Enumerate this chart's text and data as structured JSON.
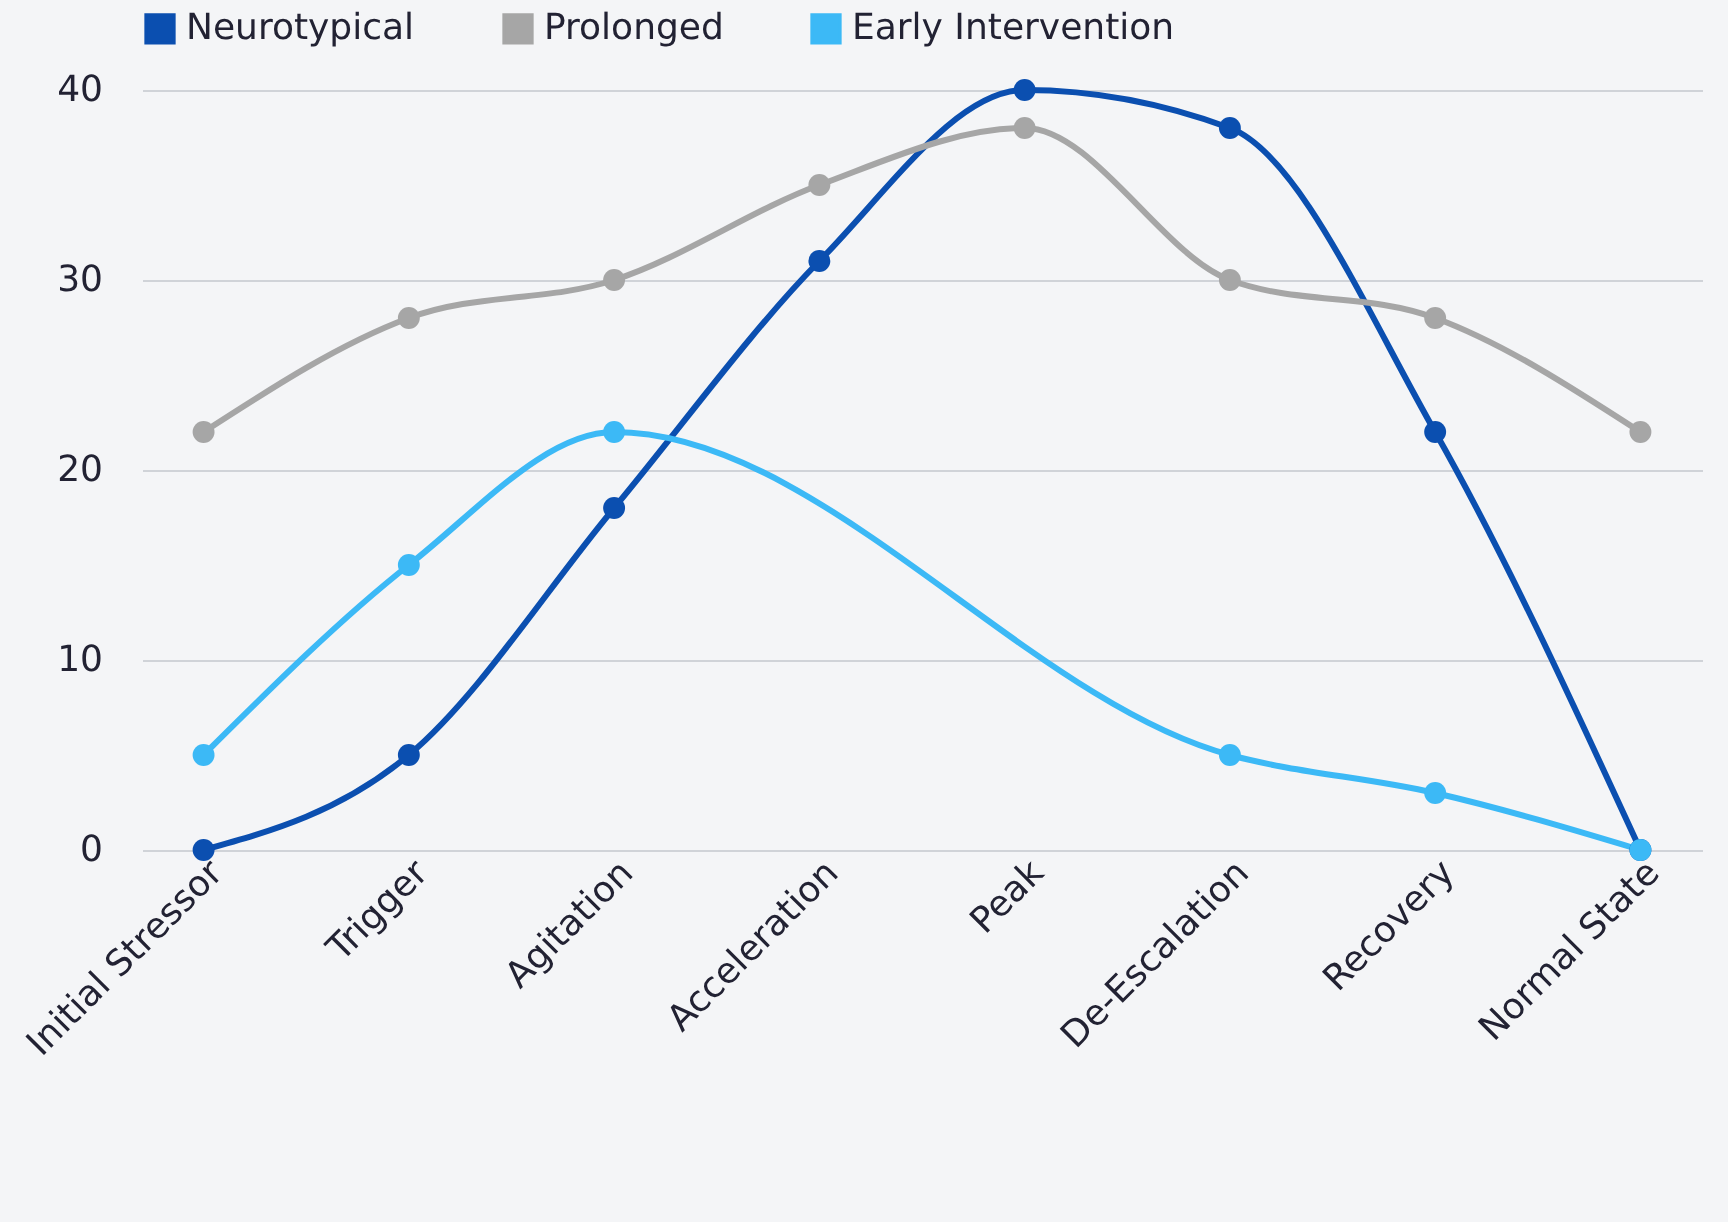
{
  "chart_data": {
    "type": "line",
    "categories": [
      "Initial Stressor",
      "Trigger",
      "Agitation",
      "Acceleration",
      "Peak",
      "De-Escalation",
      "Recovery",
      "Normal State"
    ],
    "series": [
      {
        "name": "Neurotypical",
        "color": "#0b4fb0",
        "values": [
          0,
          5,
          18,
          31,
          40,
          38,
          22,
          0
        ]
      },
      {
        "name": "Prolonged",
        "color": "#a6a6a6",
        "values": [
          22,
          28,
          30,
          35,
          38,
          30,
          28,
          22
        ]
      },
      {
        "name": "Early Intervention",
        "color": "#3cb9f6",
        "values": [
          5,
          15,
          22,
          null,
          null,
          5,
          3,
          0
        ]
      }
    ],
    "ylim": [
      0,
      40
    ],
    "yticks": [
      0,
      10,
      20,
      30,
      40
    ],
    "grid": "y",
    "legend": "top",
    "marker": "circle",
    "line_style": "solid"
  }
}
